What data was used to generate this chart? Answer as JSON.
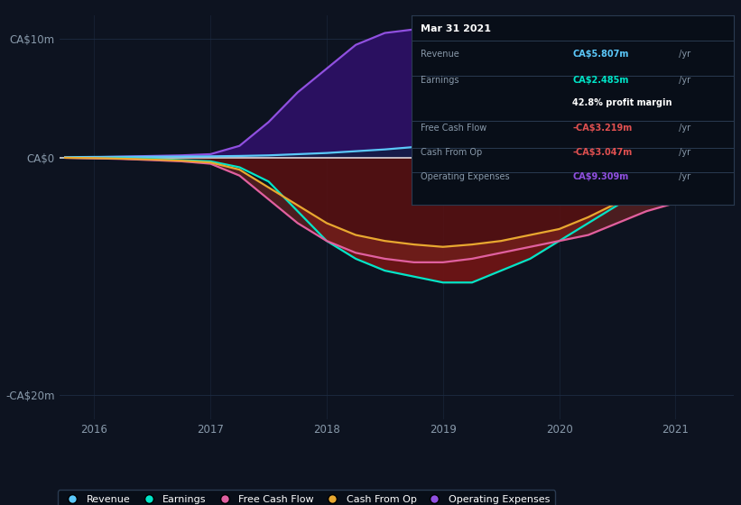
{
  "bg_color": "#0d1320",
  "plot_bg_color": "#0d1320",
  "colors": {
    "revenue": "#5bc8fa",
    "earnings": "#00e5c8",
    "free_cash_flow": "#e060a0",
    "cash_from_op": "#e8a830",
    "op_expenses": "#9050e0"
  },
  "ylim": [
    -22,
    12
  ],
  "xlim": [
    2015.7,
    2021.5
  ],
  "ytick_positions": [
    -20,
    0,
    10
  ],
  "ytick_labels": [
    "-CA$20m",
    "CA$0",
    "CA$10m"
  ],
  "xticks": [
    2016,
    2017,
    2018,
    2019,
    2020,
    2021
  ],
  "grid_color": "#1e2d45",
  "x": [
    2015.75,
    2016.0,
    2016.25,
    2016.5,
    2016.75,
    2017.0,
    2017.25,
    2017.5,
    2017.75,
    2018.0,
    2018.25,
    2018.5,
    2018.75,
    2019.0,
    2019.25,
    2019.5,
    2019.75,
    2020.0,
    2020.25,
    2020.5,
    2020.75,
    2021.0,
    2021.1,
    2021.3
  ],
  "revenue": [
    0.05,
    0.07,
    0.08,
    0.09,
    0.1,
    0.12,
    0.15,
    0.2,
    0.3,
    0.4,
    0.55,
    0.7,
    0.9,
    1.1,
    1.4,
    1.7,
    2.1,
    2.6,
    3.1,
    3.7,
    4.3,
    5.0,
    5.5,
    5.807
  ],
  "earnings": [
    0.0,
    -0.02,
    -0.05,
    -0.1,
    -0.2,
    -0.3,
    -0.8,
    -2.0,
    -4.5,
    -7.0,
    -8.5,
    -9.5,
    -10.0,
    -10.5,
    -10.5,
    -9.5,
    -8.5,
    -7.0,
    -5.5,
    -4.0,
    -2.5,
    -0.5,
    1.0,
    2.485
  ],
  "free_cash_flow": [
    0.0,
    -0.05,
    -0.1,
    -0.2,
    -0.3,
    -0.5,
    -1.5,
    -3.5,
    -5.5,
    -7.0,
    -8.0,
    -8.5,
    -8.8,
    -8.8,
    -8.5,
    -8.0,
    -7.5,
    -7.0,
    -6.5,
    -5.5,
    -4.5,
    -3.8,
    -3.5,
    -3.219
  ],
  "cash_from_op": [
    0.0,
    -0.03,
    -0.08,
    -0.15,
    -0.25,
    -0.4,
    -1.0,
    -2.5,
    -4.0,
    -5.5,
    -6.5,
    -7.0,
    -7.3,
    -7.5,
    -7.3,
    -7.0,
    -6.5,
    -6.0,
    -5.0,
    -3.8,
    -2.5,
    -1.5,
    0.5,
    -3.047
  ],
  "op_expenses": [
    0.0,
    0.05,
    0.1,
    0.15,
    0.2,
    0.3,
    1.0,
    3.0,
    5.5,
    7.5,
    9.5,
    10.5,
    10.8,
    10.5,
    9.8,
    9.2,
    8.8,
    8.8,
    9.0,
    9.2,
    9.3,
    9.35,
    9.32,
    9.309
  ],
  "info_box": {
    "date": "Mar 31 2021",
    "rows": [
      {
        "label": "Revenue",
        "value": "CA$5.807m",
        "value_color": "#5bc8fa",
        "suffix": " /yr"
      },
      {
        "label": "Earnings",
        "value": "CA$2.485m",
        "value_color": "#00e5c8",
        "suffix": " /yr"
      },
      {
        "label": "",
        "value": "42.8% profit margin",
        "value_color": "white",
        "suffix": ""
      },
      {
        "label": "Free Cash Flow",
        "value": "-CA$3.219m",
        "value_color": "#e05050",
        "suffix": " /yr"
      },
      {
        "label": "Cash From Op",
        "value": "-CA$3.047m",
        "value_color": "#e05050",
        "suffix": " /yr"
      },
      {
        "label": "Operating Expenses",
        "value": "CA$9.309m",
        "value_color": "#9050e0",
        "suffix": " /yr"
      }
    ],
    "bg": "#080e18",
    "border": "#2a3a50",
    "title_color": "white",
    "label_color": "#8899aa"
  },
  "legend_items": [
    {
      "label": "Revenue",
      "color": "#5bc8fa"
    },
    {
      "label": "Earnings",
      "color": "#00e5c8"
    },
    {
      "label": "Free Cash Flow",
      "color": "#e060a0"
    },
    {
      "label": "Cash From Op",
      "color": "#e8a830"
    },
    {
      "label": "Operating Expenses",
      "color": "#9050e0"
    }
  ]
}
